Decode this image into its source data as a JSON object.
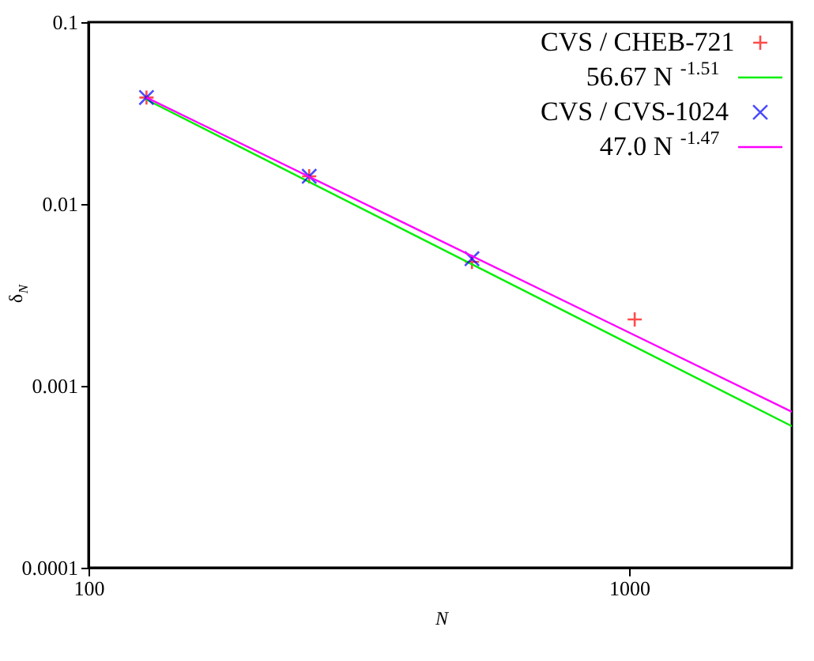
{
  "chart_data": {
    "type": "scatter",
    "xlabel": "N",
    "ylabel": "δ$_{N}$",
    "log": "xy",
    "xlim": [
      100,
      2000
    ],
    "xticks": [
      100,
      1000
    ],
    "ylim": [
      0.0001,
      0.1
    ],
    "yticks": [
      0.0001,
      0.001,
      0.01,
      0.1
    ],
    "grid": false,
    "legend": "top right",
    "series": [
      {
        "name": "CVS / CHEB-721",
        "type": "scatter",
        "marker": "cross",
        "color": "#ff0000",
        "x": [
          128,
          256,
          512,
          1024
        ],
        "values": [
          0.0385,
          0.0142,
          0.0048,
          0.00232
        ]
      },
      {
        "name": "56.67 N$^{-1.51}$",
        "type": "line",
        "color": "#00ee00",
        "x": [
          128,
          2000
        ],
        "values": [
          0.0375,
          0.0006
        ]
      },
      {
        "name": "CVS / CVS-1024",
        "type": "scatter",
        "marker": "x",
        "color": "#0000ff",
        "x": [
          128,
          256,
          512
        ],
        "values": [
          0.0385,
          0.0142,
          0.005
        ]
      },
      {
        "name": "47.0 N$^{-1.47}$",
        "type": "line",
        "color": "#ff00ff",
        "x": [
          128,
          2000
        ],
        "values": [
          0.0385,
          0.00072
        ]
      }
    ]
  }
}
